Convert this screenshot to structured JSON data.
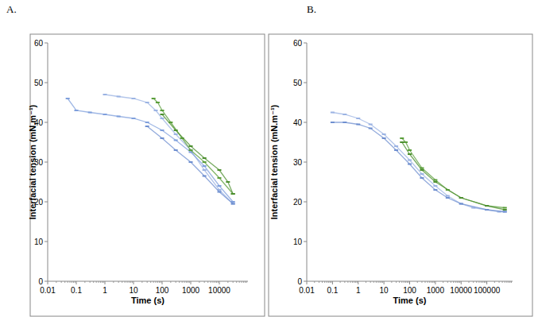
{
  "chart_data": [
    {
      "type": "scatter",
      "title": "A.",
      "x_label": "Time (s)",
      "y_label": "Interfacial tension (mN.m⁻¹)",
      "log": "x",
      "grid": false,
      "xlim": [
        0.01,
        100000
      ],
      "xticks": [
        0.01,
        0.1,
        1,
        10,
        100,
        1000,
        10000
      ],
      "ylim": [
        0,
        60
      ],
      "yticks": [
        0,
        10,
        20,
        30,
        40,
        50,
        60
      ],
      "series": [
        {
          "color": "#9bb3e3",
          "marker": "dash",
          "line_style": "solid",
          "x": [
            1,
            3,
            10,
            30,
            60,
            100,
            300,
            1000,
            3000,
            10000,
            30000
          ],
          "values": [
            47,
            46.5,
            46,
            45,
            43,
            41,
            37,
            33,
            28,
            23,
            19.5
          ]
        },
        {
          "color": "#7f9fdc",
          "marker": "dash",
          "line_style": "solid",
          "x": [
            0.05,
            0.1,
            0.3,
            1,
            3,
            10,
            30,
            100,
            300,
            1000,
            3000,
            10000,
            30000
          ],
          "values": [
            46,
            43,
            42.5,
            42,
            41.5,
            41,
            40,
            38,
            35.5,
            32.5,
            29,
            24,
            20
          ]
        },
        {
          "color": "#6f8fd0",
          "marker": "dash",
          "line_style": "solid",
          "x": [
            30,
            100,
            300,
            1000,
            3000,
            10000,
            30000
          ],
          "values": [
            39,
            36,
            33,
            30,
            26.5,
            22.5,
            19.5
          ]
        },
        {
          "color": "#5a9e3a",
          "marker": "dash",
          "line_style": "solid",
          "x": [
            50,
            70,
            100,
            200,
            500,
            1000,
            3000,
            10000,
            30000
          ],
          "values": [
            46,
            45,
            43,
            40,
            36,
            33,
            30,
            26,
            22
          ]
        },
        {
          "color": "#4c8f2f",
          "marker": "dash",
          "line_style": "solid",
          "x": [
            100,
            300,
            1000,
            3000,
            10000,
            20000,
            30000
          ],
          "values": [
            42,
            38,
            34,
            31,
            28,
            25,
            22
          ]
        }
      ]
    },
    {
      "type": "scatter",
      "title": "B.",
      "x_label": "Time (s)",
      "y_label": "Interfacial tension (mN.m⁻¹)",
      "log": "x",
      "grid": false,
      "xlim": [
        0.01,
        1000000
      ],
      "xticks": [
        0.01,
        0.1,
        1,
        10,
        100,
        1000,
        10000,
        100000
      ],
      "ylim": [
        0,
        60
      ],
      "yticks": [
        0,
        10,
        20,
        30,
        40,
        50,
        60
      ],
      "series": [
        {
          "color": "#9bb3e3",
          "marker": "dash",
          "line_style": "solid",
          "x": [
            0.1,
            0.3,
            1,
            3,
            10,
            30,
            100,
            300,
            1000,
            3000,
            10000,
            30000,
            100000,
            300000,
            500000
          ],
          "values": [
            42.5,
            42,
            41,
            39.5,
            37,
            34,
            30.5,
            27,
            24,
            21.5,
            19.5,
            18.5,
            18,
            17.5,
            17.5
          ]
        },
        {
          "color": "#6f8fd0",
          "marker": "dash",
          "line_style": "solid",
          "x": [
            0.1,
            0.3,
            1,
            3,
            10,
            30,
            100,
            300,
            1000,
            3000,
            10000,
            100000,
            500000
          ],
          "values": [
            40,
            40,
            39.5,
            38.5,
            36,
            33,
            29.5,
            26,
            23,
            21,
            19.5,
            18,
            17.5
          ]
        },
        {
          "color": "#5a9e3a",
          "marker": "dash",
          "line_style": "solid",
          "x": [
            50,
            70,
            100,
            300,
            1000,
            3000,
            10000,
            100000,
            500000
          ],
          "values": [
            36,
            35,
            33,
            28.5,
            25.5,
            23,
            21,
            19,
            18.5
          ]
        },
        {
          "color": "#4c8f2f",
          "marker": "dash",
          "line_style": "solid",
          "x": [
            50,
            100,
            300,
            1000,
            10000,
            100000,
            500000
          ],
          "values": [
            35,
            32,
            28,
            25,
            21,
            19,
            18
          ]
        }
      ]
    }
  ]
}
